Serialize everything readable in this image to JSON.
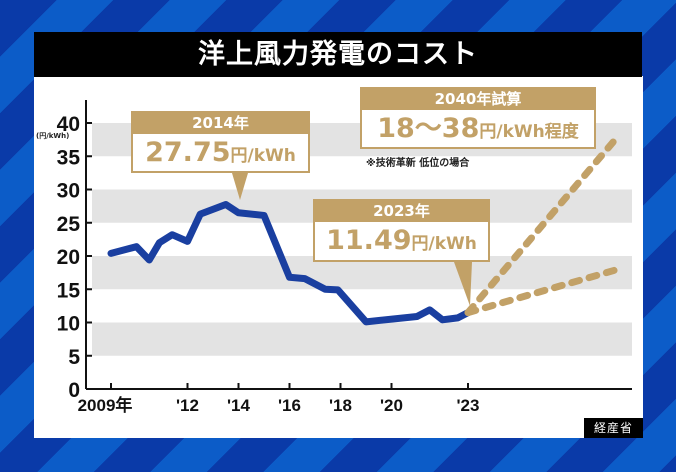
{
  "title": "洋上風力発電のコスト",
  "source": "経産省",
  "colors": {
    "line": "#1a3fa0",
    "projection": "#c2a167",
    "band": "#e3e3e3",
    "accent": "#c2a167"
  },
  "callouts": {
    "c2014": {
      "header": "2014年",
      "value": "27.75",
      "unit": "円/kWh"
    },
    "c2023": {
      "header": "2023年",
      "value": "11.49",
      "unit": "円/kWh"
    },
    "c2040": {
      "header": "2040年試算",
      "value": "18〜38",
      "unit": "円/kWh程度",
      "note": "※技術革新 低位の場合"
    }
  },
  "chart_data": {
    "type": "line",
    "title": "洋上風力発電のコスト",
    "ylabel": "(円/kWh)",
    "ylim": [
      0,
      40
    ],
    "yticks": [
      "0",
      "5",
      "10",
      "15",
      "20",
      "25",
      "30",
      "35",
      "40"
    ],
    "xtick_labels": [
      {
        "year": 2009,
        "label": "2009年"
      },
      {
        "year": 2012,
        "label": "'12"
      },
      {
        "year": 2014,
        "label": "'14"
      },
      {
        "year": 2016,
        "label": "'16"
      },
      {
        "year": 2018,
        "label": "'18"
      },
      {
        "year": 2020,
        "label": "'20"
      },
      {
        "year": 2023,
        "label": "'23"
      }
    ],
    "grid": "alternating horizontal bands",
    "series": [
      {
        "style": "solid",
        "x": [
          2009,
          2010,
          2010.5,
          2010.9,
          2011.4,
          2012,
          2012.5,
          2013.5,
          2014,
          2015,
          2016,
          2016.6,
          2017.4,
          2017.9,
          2019,
          2021,
          2021.5,
          2022,
          2022.6,
          2023
        ],
        "y": [
          20.4,
          21.4,
          19.4,
          22.0,
          23.2,
          22.2,
          26.3,
          27.75,
          26.5,
          26.1,
          16.8,
          16.6,
          15.0,
          14.9,
          10.1,
          10.9,
          11.9,
          10.4,
          10.7,
          11.49
        ]
      },
      {
        "style": "dashed",
        "x": [
          2023,
          2040
        ],
        "y": [
          11.49,
          38
        ]
      },
      {
        "style": "dashed",
        "x": [
          2023,
          2040
        ],
        "y": [
          11.49,
          18
        ]
      }
    ]
  }
}
